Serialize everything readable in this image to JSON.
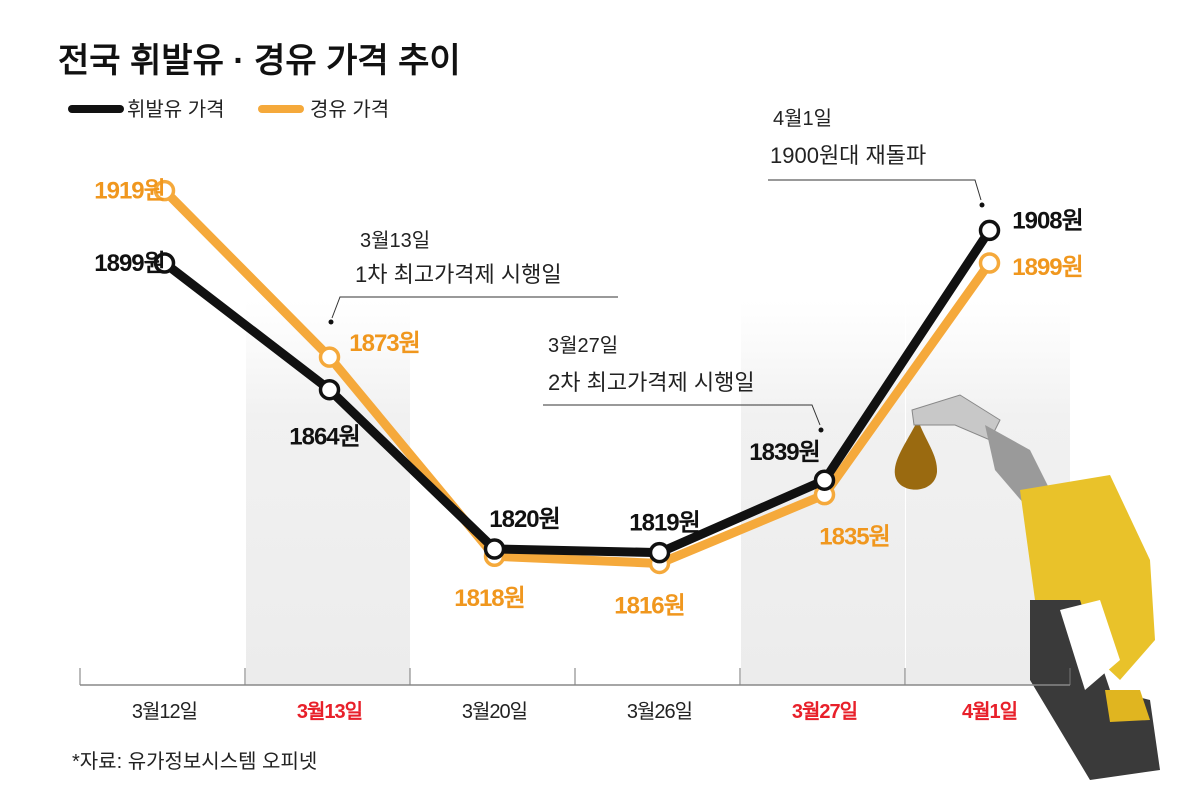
{
  "chart_data": {
    "type": "line",
    "title": "전국 휘발유 · 경유 가격 추이",
    "categories": [
      "3월12일",
      "3월13일",
      "3월20일",
      "3월26일",
      "3월27일",
      "4월1일"
    ],
    "highlighted_categories": [
      "3월13일",
      "3월27일",
      "4월1일"
    ],
    "series": [
      {
        "name": "휘발유 가격",
        "color": "#111111",
        "values": [
          1899,
          1864,
          1820,
          1819,
          1839,
          1908
        ],
        "labels": [
          "1899원",
          "1864원",
          "1820원",
          "1819원",
          "1839원",
          "1908원"
        ]
      },
      {
        "name": "경유 가격",
        "color": "#F5A93B",
        "values": [
          1919,
          1873,
          1818,
          1816,
          1835,
          1899
        ],
        "labels": [
          "1919원",
          "1873원",
          "1818원",
          "1816원",
          "1835원",
          "1899원"
        ]
      }
    ],
    "annotations": [
      {
        "date": "3월13일",
        "text": "1차 최고가격제 시행일"
      },
      {
        "date": "3월27일",
        "text": "2차 최고가격제 시행일"
      },
      {
        "date": "4월1일",
        "text": "1900원대 재돌파"
      }
    ],
    "source": "*자료: 유가정보시스템 오피넷",
    "grid": false,
    "legend": "top-left",
    "highlight_color": "#E8202A"
  }
}
